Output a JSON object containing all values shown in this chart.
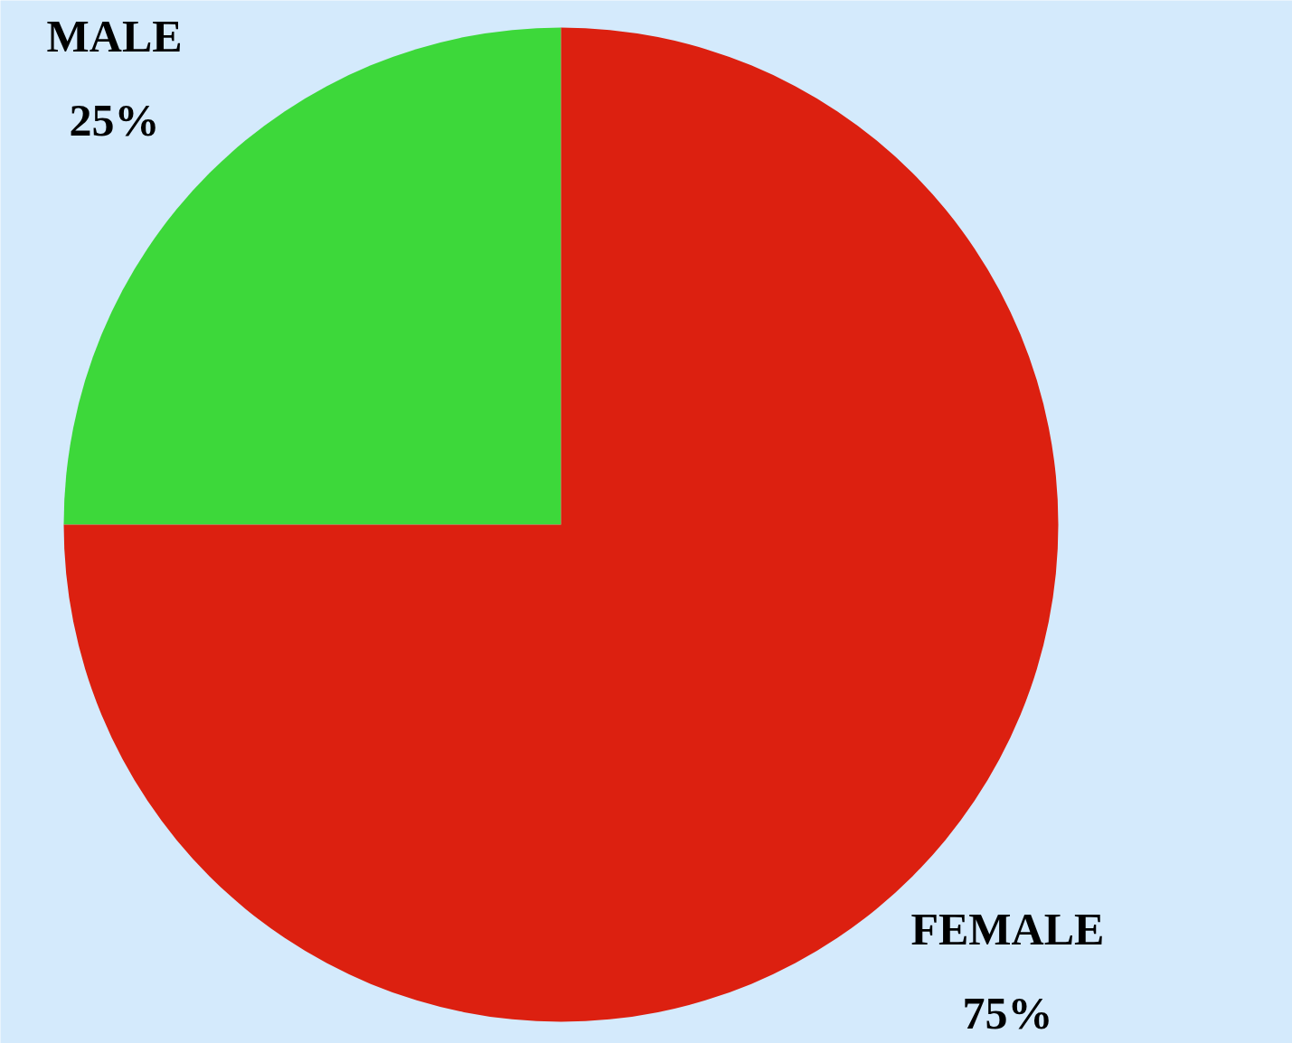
{
  "chart_data": {
    "type": "pie",
    "categories": [
      "MALE",
      "FEMALE"
    ],
    "values": [
      25,
      75
    ],
    "colors": [
      "#3dd83a",
      "#dc2010"
    ],
    "value_labels": [
      "25%",
      "75%"
    ]
  }
}
